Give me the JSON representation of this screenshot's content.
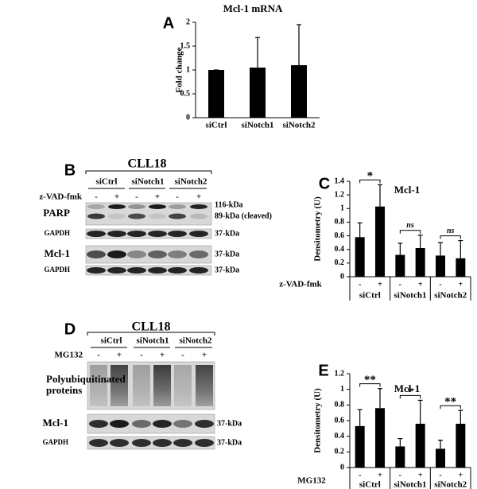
{
  "chart_data": [
    {
      "type": "bar",
      "label": "A",
      "title": "Mcl-1 mRNA",
      "ylabel": "Fold change",
      "categories": [
        "siCtrl",
        "siNotch1",
        "siNotch2"
      ],
      "values": [
        1,
        1.05,
        1.1
      ],
      "errors": [
        0,
        0.63,
        0.85
      ],
      "color": "#000000",
      "ylim": [
        0,
        2
      ],
      "yticks": [
        0,
        0.5,
        1,
        1.5,
        2
      ]
    },
    {
      "type": "bar",
      "label": "C",
      "title": "Mcl-1",
      "ylabel": "Densitometry (U)",
      "categories": [
        "-",
        "+",
        "-",
        "+",
        "-",
        "+"
      ],
      "groups": [
        "siCtrl",
        "siNotch1",
        "siNotch2"
      ],
      "treatment": "z-VAD-fmk",
      "values": [
        0.58,
        1.03,
        0.32,
        0.42,
        0.31,
        0.27
      ],
      "errors": [
        0.21,
        0.32,
        0.17,
        0.19,
        0.19,
        0.26
      ],
      "significance": [
        "*",
        "ns",
        "ns"
      ],
      "color": "#000000",
      "ylim": [
        0,
        1.4
      ],
      "yticks": [
        0,
        0.2,
        0.4,
        0.6,
        0.8,
        1,
        1.2,
        1.4
      ]
    },
    {
      "type": "bar",
      "label": "E",
      "title": "Mcl-1",
      "ylabel": "Densitometry (U)",
      "categories": [
        "-",
        "+",
        "-",
        "+",
        "-",
        "+"
      ],
      "groups": [
        "siCtrl",
        "siNotch1",
        "siNotch2"
      ],
      "treatment": "MG132",
      "values": [
        0.53,
        0.76,
        0.27,
        0.56,
        0.24,
        0.56
      ],
      "errors": [
        0.21,
        0.25,
        0.1,
        0.3,
        0.11,
        0.17
      ],
      "significance": [
        "**",
        "*",
        "**"
      ],
      "color": "#000000",
      "ylim": [
        0,
        1.2
      ],
      "yticks": [
        0,
        0.2,
        0.4,
        0.6,
        0.8,
        1,
        1.2
      ]
    }
  ],
  "blots": [
    {
      "label": "B",
      "title": "CLL18",
      "groups": [
        "siCtrl",
        "siNotch1",
        "siNotch2"
      ],
      "treatment": "z-VAD-fmk",
      "lanes": [
        "-",
        "+",
        "-",
        "+",
        "-",
        "+"
      ],
      "rows": [
        {
          "name": [
            "PARP"
          ],
          "sizes": [
            "116-kDa",
            "89-kDa (cleaved)"
          ]
        },
        {
          "name": [
            "GAPDH"
          ],
          "sizes": [
            "37-kDa"
          ]
        },
        {
          "name": [
            "Mcl-1"
          ],
          "sizes": [
            "37-kDa"
          ]
        },
        {
          "name": [
            "GAPDH"
          ],
          "sizes": [
            "37-kDa"
          ]
        }
      ]
    },
    {
      "label": "D",
      "title": "CLL18",
      "groups": [
        "siCtrl",
        "siNotch1",
        "siNotch2"
      ],
      "treatment": "MG132",
      "lanes": [
        "-",
        "+",
        "-",
        "+",
        "-",
        "+"
      ],
      "rows": [
        {
          "name": [
            "Polyubiquitinated",
            "proteins"
          ],
          "sizes": []
        },
        {
          "name": [
            "Mcl-1"
          ],
          "sizes": [
            "37-kDa"
          ]
        },
        {
          "name": [
            "GAPDH"
          ],
          "sizes": [
            "37-kDa"
          ]
        }
      ]
    }
  ]
}
